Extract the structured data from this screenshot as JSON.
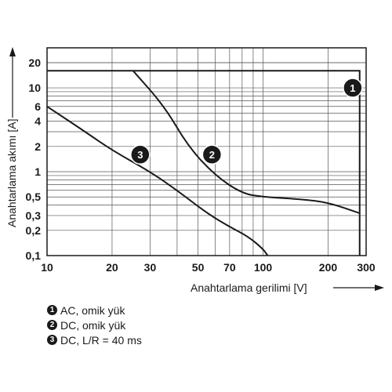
{
  "chart_data": {
    "type": "line",
    "xlabel": "Anahtarlama gerilimi [V]",
    "ylabel": "Anahtarlama akımı [A]",
    "x_scale": "log",
    "y_scale": "log",
    "xlim": [
      10,
      300
    ],
    "ylim": [
      0.1,
      30
    ],
    "x_ticks": [
      {
        "value": 10,
        "label": "10"
      },
      {
        "value": 20,
        "label": "20"
      },
      {
        "value": 30,
        "label": "30"
      },
      {
        "value": 50,
        "label": "50"
      },
      {
        "value": 70,
        "label": "70"
      },
      {
        "value": 100,
        "label": "100"
      },
      {
        "value": 200,
        "label": "200"
      },
      {
        "value": 300,
        "label": "300"
      }
    ],
    "y_ticks": [
      {
        "value": 0.1,
        "label": "0,1"
      },
      {
        "value": 0.2,
        "label": "0,2"
      },
      {
        "value": 0.3,
        "label": "0,3"
      },
      {
        "value": 0.5,
        "label": "0,5"
      },
      {
        "value": 1,
        "label": "1"
      },
      {
        "value": 2,
        "label": "2"
      },
      {
        "value": 4,
        "label": "4"
      },
      {
        "value": 6,
        "label": "6"
      },
      {
        "value": 10,
        "label": "10"
      },
      {
        "value": 20,
        "label": "20"
      }
    ],
    "grid": true,
    "series": [
      {
        "marker": "1",
        "points": [
          [
            10,
            16
          ],
          [
            100,
            16
          ],
          [
            200,
            16
          ],
          [
            280,
            16
          ],
          [
            280,
            0.1
          ]
        ]
      },
      {
        "marker": "2",
        "points": [
          [
            25,
            16
          ],
          [
            35,
            6
          ],
          [
            45,
            2
          ],
          [
            60,
            0.9
          ],
          [
            80,
            0.55
          ],
          [
            100,
            0.5
          ],
          [
            150,
            0.47
          ],
          [
            200,
            0.43
          ],
          [
            280,
            0.32
          ]
        ]
      },
      {
        "marker": "3",
        "points": [
          [
            10,
            6
          ],
          [
            15,
            3
          ],
          [
            20,
            1.8
          ],
          [
            30,
            1
          ],
          [
            40,
            0.6
          ],
          [
            55,
            0.32
          ],
          [
            70,
            0.22
          ],
          [
            85,
            0.17
          ],
          [
            100,
            0.12
          ],
          [
            105,
            0.1
          ]
        ]
      }
    ],
    "markers": [
      {
        "label": "1",
        "x": 260,
        "y": 10
      },
      {
        "label": "2",
        "x": 58,
        "y": 1.6
      },
      {
        "label": "3",
        "x": 27,
        "y": 1.6
      }
    ],
    "legend": [
      {
        "marker": "1",
        "text": "AC, omik yük"
      },
      {
        "marker": "2",
        "text": "DC, omik yük"
      },
      {
        "marker": "3",
        "text": "DC, L/R = 40 ms"
      }
    ]
  }
}
